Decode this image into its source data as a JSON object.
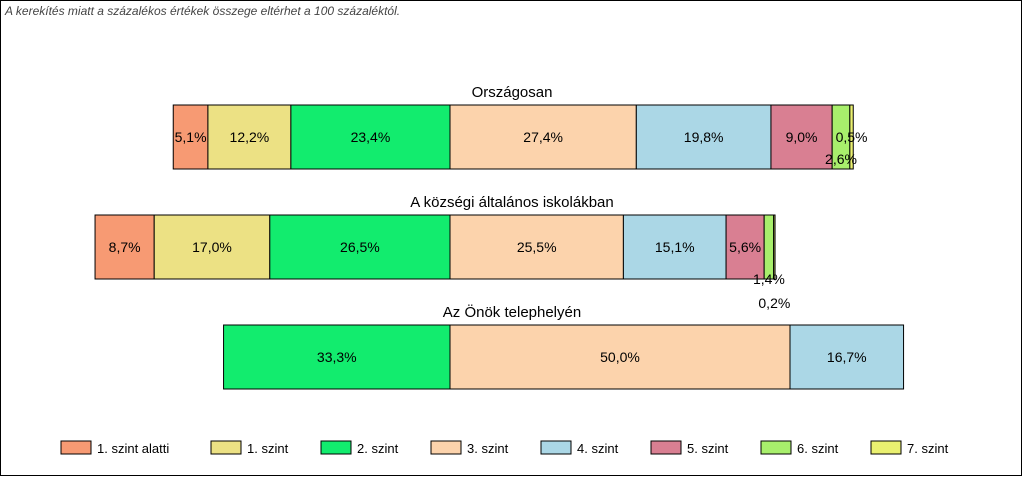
{
  "note": "A kerekítés miatt a  százalékos értékek összege eltérhet a 100 százaléktól.",
  "chart_data": {
    "type": "bar",
    "orientation": "horizontal-diverging-stacked",
    "legend_position": "bottom",
    "categories": [
      "Országosan",
      "A községi általános iskolákban",
      "Az Önök telephelyén"
    ],
    "series": [
      {
        "name": "1. szint alatti",
        "color": "#f79a73",
        "values": [
          5.1,
          8.7,
          0
        ],
        "labels": [
          "5,1%",
          "8,7%",
          ""
        ]
      },
      {
        "name": "1. szint",
        "color": "#ece184",
        "values": [
          12.2,
          17.0,
          0
        ],
        "labels": [
          "12,2%",
          "17,0%",
          ""
        ]
      },
      {
        "name": "2. szint",
        "color": "#12ec6e",
        "values": [
          23.4,
          26.5,
          33.3
        ],
        "labels": [
          "23,4%",
          "26,5%",
          "33,3%"
        ]
      },
      {
        "name": "3. szint",
        "color": "#fcd3ac",
        "values": [
          27.4,
          25.5,
          50.0
        ],
        "labels": [
          "27,4%",
          "25,5%",
          "50,0%"
        ]
      },
      {
        "name": "4. szint",
        "color": "#abd7e6",
        "values": [
          19.8,
          15.1,
          16.7
        ],
        "labels": [
          "19,8%",
          "15,1%",
          "16,7%"
        ]
      },
      {
        "name": "5. szint",
        "color": "#d97f92",
        "values": [
          9.0,
          5.6,
          0
        ],
        "labels": [
          "9,0%",
          "5,6%",
          ""
        ]
      },
      {
        "name": "6. szint",
        "color": "#a8ef6c",
        "values": [
          2.6,
          1.4,
          0
        ],
        "labels": [
          "2,6%",
          "1,4%",
          ""
        ]
      },
      {
        "name": "7. szint",
        "color": "#eaf070",
        "values": [
          0.5,
          0.2,
          0
        ],
        "labels": [
          "0,5%",
          "0,2%",
          ""
        ]
      }
    ]
  }
}
